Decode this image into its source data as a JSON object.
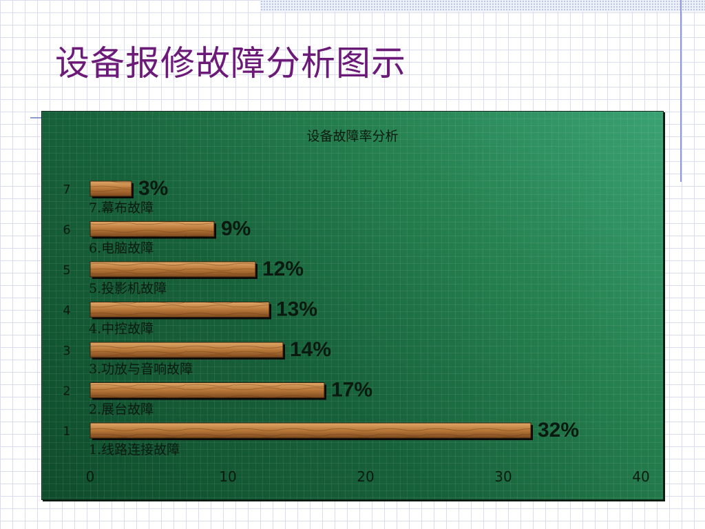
{
  "slide": {
    "title": "设备报修故障分析图示"
  },
  "chart_data": {
    "type": "bar",
    "orientation": "horizontal",
    "title": "设备故障率分析",
    "categories": [
      "1",
      "2",
      "3",
      "4",
      "5",
      "6",
      "7"
    ],
    "values": [
      32,
      17,
      14,
      13,
      12,
      9,
      3
    ],
    "value_labels": [
      "32%",
      "17%",
      "14%",
      "13%",
      "12%",
      "9%",
      "3%"
    ],
    "bar_names": [
      "1.线路连接故障",
      "2.展台故障",
      "3.功放与音响故障",
      "4.中控故障",
      "5.投影机故障",
      "6.电脑故障",
      "7.幕布故障"
    ],
    "xlim": [
      0,
      40
    ],
    "x_ticks": [
      "0",
      "10",
      "20",
      "30",
      "40"
    ],
    "grid": true,
    "colors": {
      "background": "#1f6e46",
      "bar": "#c0824a",
      "bar_dark": "#7a4a22",
      "text": "#0b1a10"
    }
  }
}
